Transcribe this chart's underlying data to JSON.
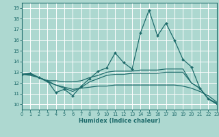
{
  "xlabel": "Humidex (Indice chaleur)",
  "xlim": [
    0,
    23
  ],
  "ylim": [
    9.5,
    19.5
  ],
  "yticks": [
    10,
    11,
    12,
    13,
    14,
    15,
    16,
    17,
    18,
    19
  ],
  "xticks": [
    0,
    1,
    2,
    3,
    4,
    5,
    6,
    7,
    8,
    9,
    10,
    11,
    12,
    13,
    14,
    15,
    16,
    17,
    18,
    19,
    20,
    21,
    22,
    23
  ],
  "bg_color": "#add8d0",
  "grid_color": "#ffffff",
  "line_color": "#1e6b6b",
  "lines": [
    {
      "x": [
        0,
        1,
        2,
        3,
        4,
        5,
        6,
        7,
        8,
        9,
        10,
        11,
        12,
        13,
        14,
        15,
        16,
        17,
        18,
        19,
        20,
        21,
        22,
        23
      ],
      "y": [
        12.8,
        12.9,
        12.5,
        12.2,
        11.1,
        11.4,
        10.8,
        11.7,
        12.4,
        13.1,
        13.4,
        14.8,
        13.9,
        13.3,
        16.7,
        18.8,
        16.4,
        17.6,
        16.0,
        14.2,
        13.5,
        11.5,
        10.5,
        10.1
      ],
      "marker": true
    },
    {
      "x": [
        0,
        1,
        2,
        3,
        4,
        5,
        6,
        7,
        8,
        9,
        10,
        11,
        12,
        13,
        14,
        15,
        16,
        17,
        18,
        19,
        20,
        21,
        22,
        23
      ],
      "y": [
        12.8,
        12.9,
        12.5,
        12.2,
        12.2,
        12.1,
        12.1,
        12.2,
        12.5,
        12.7,
        13.0,
        13.1,
        13.1,
        13.1,
        13.2,
        13.2,
        13.2,
        13.3,
        13.3,
        13.3,
        12.0,
        11.5,
        10.5,
        10.1
      ],
      "marker": false
    },
    {
      "x": [
        0,
        1,
        2,
        3,
        4,
        5,
        6,
        7,
        8,
        9,
        10,
        11,
        12,
        13,
        14,
        15,
        16,
        17,
        18,
        19,
        20,
        21,
        22,
        23
      ],
      "y": [
        12.8,
        12.8,
        12.5,
        12.1,
        11.8,
        11.5,
        11.2,
        11.6,
        12.1,
        12.4,
        12.7,
        12.8,
        12.8,
        12.9,
        12.9,
        12.9,
        12.9,
        13.0,
        13.0,
        13.0,
        12.0,
        11.5,
        10.5,
        10.0
      ],
      "marker": false
    },
    {
      "x": [
        0,
        1,
        2,
        3,
        4,
        5,
        6,
        7,
        8,
        9,
        10,
        11,
        12,
        13,
        14,
        15,
        16,
        17,
        18,
        19,
        20,
        21,
        22,
        23
      ],
      "y": [
        12.8,
        12.7,
        12.5,
        12.2,
        11.8,
        11.6,
        11.4,
        11.5,
        11.6,
        11.7,
        11.7,
        11.8,
        11.8,
        11.8,
        11.8,
        11.8,
        11.8,
        11.8,
        11.8,
        11.7,
        11.5,
        11.2,
        10.8,
        10.2
      ],
      "marker": false
    }
  ]
}
